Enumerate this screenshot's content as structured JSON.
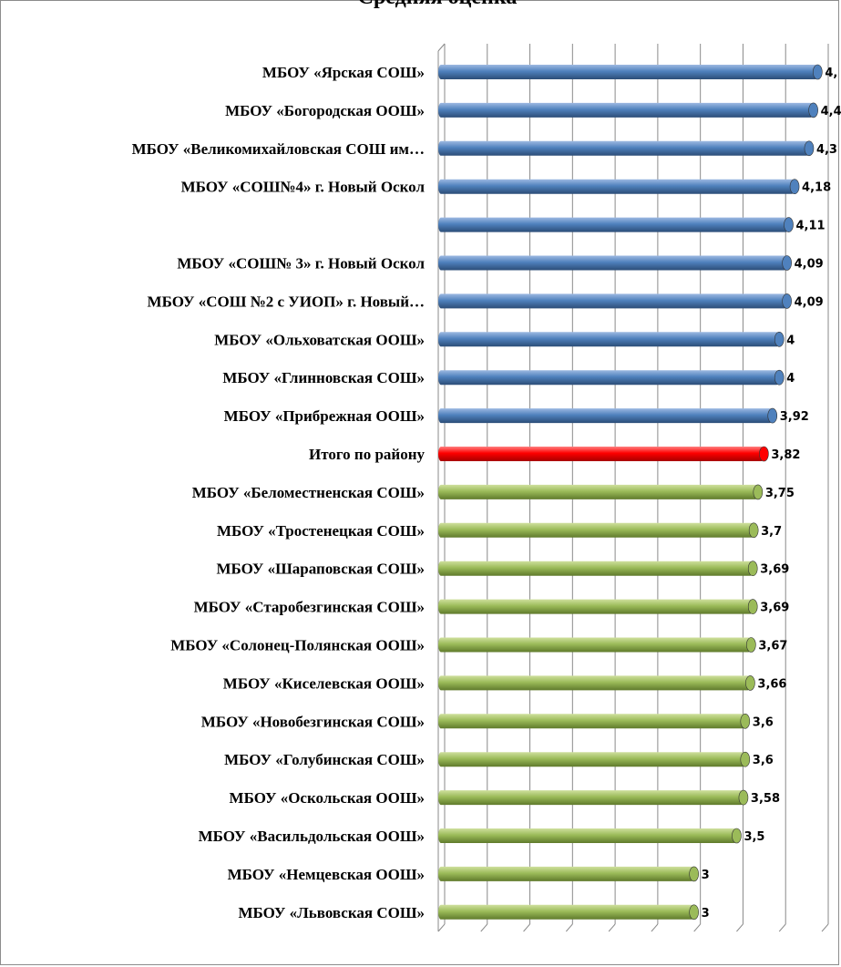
{
  "title": "Средняя оценка",
  "colors": {
    "top": "#4f81bd",
    "total": "#ff0000",
    "bottom": "#9bbb59",
    "grid": "#8a8a8a",
    "background": "#ffffff"
  },
  "chart_data": {
    "type": "bar",
    "orientation": "horizontal",
    "style": "3d-cylinder",
    "title": "Средняя оценка",
    "xlim": [
      0,
      4.5
    ],
    "grid": true,
    "categories": [
      "МБОУ «Ярская СОШ»",
      "МБОУ «Богородская ООШ»",
      "МБОУ «Великомихайловская СОШ им…",
      "МБОУ «СОШ№4» г. Новый Оскол",
      "",
      "МБОУ «СОШ№ 3» г. Новый Оскол",
      "МБОУ «СОШ №2 с УИОП» г. Новый…",
      "МБОУ «Ольховатская ООШ»",
      "МБОУ «Глинновская СОШ»",
      "МБОУ «Прибрежная ООШ»",
      "Итого по району",
      "МБОУ «Беломестненская СОШ»",
      "МБОУ «Тростенецкая СОШ»",
      "МБОУ «Шараповская СОШ»",
      "МБОУ «Старобезгинская СОШ»",
      "МБОУ «Солонец-Полянская ООШ»",
      "МБОУ «Киселевская ООШ»",
      "МБОУ «Новобезгинская СОШ»",
      "МБОУ «Голубинская СОШ»",
      "МБОУ «Оскольская ООШ»",
      "МБОУ «Васильдольская ООШ»",
      "МБОУ «Немцевская ООШ»",
      "МБОУ «Львовская СОШ»"
    ],
    "values": [
      4.45,
      4.4,
      4.35,
      4.18,
      4.11,
      4.09,
      4.09,
      4,
      4,
      3.92,
      3.82,
      3.75,
      3.7,
      3.69,
      3.69,
      3.67,
      3.66,
      3.6,
      3.6,
      3.58,
      3.5,
      3,
      3
    ],
    "value_labels": [
      "4,",
      "4,4",
      "4,3",
      "4,18",
      "4,11",
      "4,09",
      "4,09",
      "4",
      "4",
      "3,92",
      "3,82",
      "3,75",
      "3,7",
      "3,69",
      "3,69",
      "3,67",
      "3,66",
      "3,6",
      "3,6",
      "3,58",
      "3,5",
      "3",
      "3"
    ],
    "groups": [
      "top",
      "top",
      "top",
      "top",
      "top",
      "top",
      "top",
      "top",
      "top",
      "top",
      "total",
      "bottom",
      "bottom",
      "bottom",
      "bottom",
      "bottom",
      "bottom",
      "bottom",
      "bottom",
      "bottom",
      "bottom",
      "bottom",
      "bottom"
    ]
  }
}
